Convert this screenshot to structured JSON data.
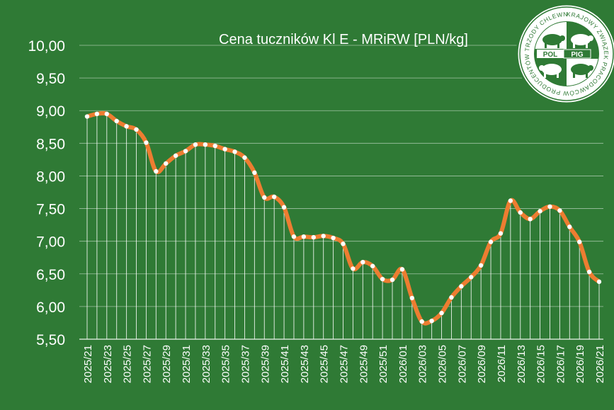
{
  "chart_data": {
    "type": "line",
    "title": "Cena tuczników Kl E - MRiRW [PLN/kg]",
    "xlabel": "",
    "ylabel": "",
    "ylim": [
      5.5,
      10.0
    ],
    "yticks": [
      "10,00",
      "9,50",
      "9,00",
      "8,50",
      "8,00",
      "7,50",
      "7,00",
      "6,50",
      "6,00",
      "5,50"
    ],
    "ytick_values": [
      10.0,
      9.5,
      9.0,
      8.5,
      8.0,
      7.5,
      7.0,
      6.5,
      6.0,
      5.5
    ],
    "grid": true,
    "x": [
      "2025/21",
      "2025/22",
      "2025/23",
      "2025/24",
      "2025/25",
      "2025/26",
      "2025/27",
      "2025/28",
      "2025/29",
      "2025/30",
      "2025/31",
      "2025/32",
      "2025/33",
      "2025/34",
      "2025/35",
      "2025/36",
      "2025/37",
      "2025/38",
      "2025/39",
      "2025/40",
      "2025/41",
      "2025/42",
      "2025/43",
      "2025/44",
      "2025/45",
      "2025/46",
      "2025/47",
      "2025/48",
      "2025/49",
      "2025/50",
      "2025/51",
      "2025/52",
      "2026/01",
      "2026/02",
      "2026/03",
      "2026/04",
      "2026/05",
      "2026/06",
      "2026/07",
      "2026/08",
      "2026/09",
      "2026/10",
      "2026/11",
      "2026/12",
      "2026/13",
      "2026/14",
      "2026/15",
      "2026/16",
      "2026/17",
      "2026/18",
      "2026/19",
      "2026/20",
      "2026/21"
    ],
    "x_tick_labels": [
      "2025/21",
      "2025/23",
      "2025/25",
      "2025/27",
      "2025/29",
      "2025/31",
      "2025/33",
      "2025/35",
      "2025/37",
      "2025/39",
      "2025/41",
      "2025/43",
      "2025/45",
      "2025/47",
      "2025/49",
      "2025/51",
      "2026/01",
      "2026/03",
      "2026/05",
      "2026/07",
      "2026/09",
      "2026/11",
      "2026/13",
      "2026/15",
      "2026/17",
      "2026/19",
      "2026/21"
    ],
    "series": [
      {
        "name": "",
        "values": [
          8.91,
          8.95,
          8.95,
          8.84,
          8.76,
          8.71,
          8.51,
          8.07,
          8.19,
          8.31,
          8.38,
          8.48,
          8.48,
          8.46,
          8.41,
          8.37,
          8.28,
          8.05,
          7.67,
          7.68,
          7.52,
          7.07,
          7.07,
          7.06,
          7.08,
          7.05,
          6.96,
          6.58,
          6.68,
          6.62,
          6.42,
          6.41,
          6.57,
          6.13,
          5.77,
          5.78,
          5.9,
          6.14,
          6.31,
          6.45,
          6.63,
          6.99,
          7.12,
          7.62,
          7.44,
          7.34,
          7.46,
          7.53,
          7.47,
          7.22,
          6.99,
          6.53,
          6.38
        ]
      }
    ],
    "colors": {
      "background": "#2f7a35",
      "line": "#ed7d31",
      "marker": "#ffffff",
      "grid": "#ffffff",
      "text": "#ffffff"
    }
  },
  "logo": {
    "center_left": "POL",
    "center_right": "PIG",
    "ring_text": "KRAJOWY ZWIĄZEK PRACODAWCÓW PRODUCENTÓW TRZODY CHLEWNEJ"
  }
}
